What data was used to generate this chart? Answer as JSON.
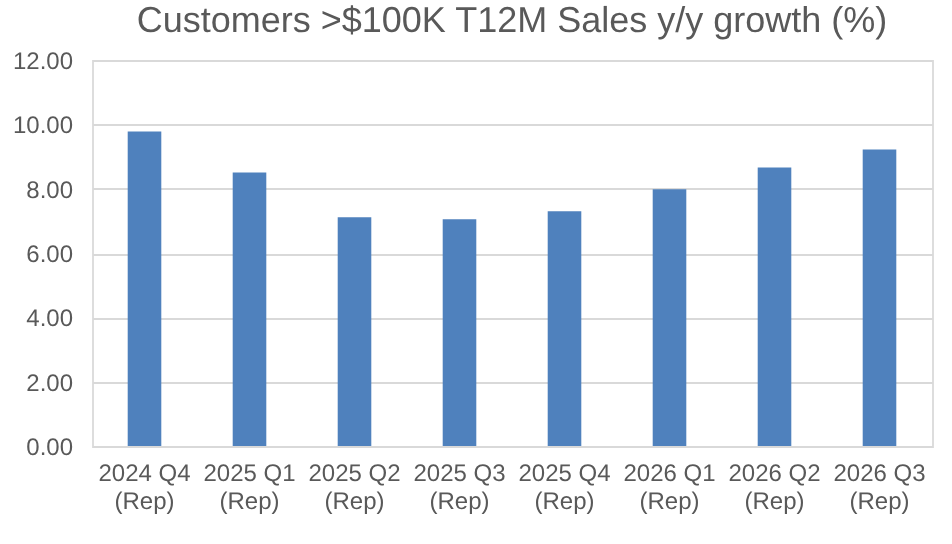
{
  "chart_data": {
    "type": "bar",
    "title": "Customers >$100K T12M Sales y/y growth (%)",
    "categories": [
      "2024 Q4\n(Rep)",
      "2025 Q1\n(Rep)",
      "2025 Q2\n(Rep)",
      "2025 Q3\n(Rep)",
      "2025 Q4\n(Rep)",
      "2026 Q1\n(Rep)",
      "2026 Q2\n(Rep)",
      "2026 Q3\n(Rep)"
    ],
    "values": [
      9.78,
      8.5,
      7.11,
      7.05,
      7.3,
      7.98,
      8.66,
      9.22
    ],
    "color": "#4f81bd",
    "ylim": [
      0,
      12
    ],
    "yticks": [
      {
        "value": 0,
        "label": "0.00"
      },
      {
        "value": 2,
        "label": "2.00"
      },
      {
        "value": 4,
        "label": "4.00"
      },
      {
        "value": 6,
        "label": "6.00"
      },
      {
        "value": 8,
        "label": "8.00"
      },
      {
        "value": 10,
        "label": "10.00"
      },
      {
        "value": 12,
        "label": "12.00"
      }
    ],
    "grid": "y"
  }
}
